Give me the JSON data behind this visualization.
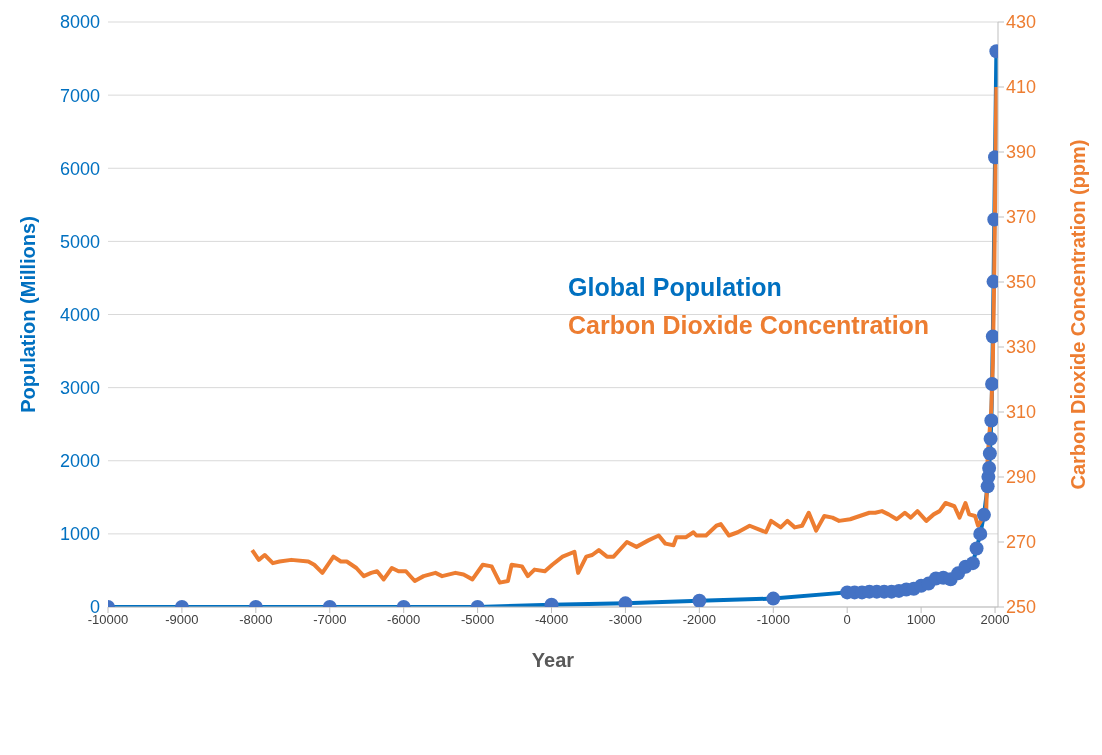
{
  "chart_data": {
    "type": "line",
    "xlabel": "Year",
    "ylabel": "Population  (Millions)",
    "y2label": "Carbon Dioxide Concentration  (ppm)",
    "xlim": [
      -10000,
      2040
    ],
    "xticks": [
      -10000,
      -9000,
      -8000,
      -7000,
      -6000,
      -5000,
      -4000,
      -3000,
      -2000,
      -1000,
      0,
      1000,
      2000
    ],
    "ylim": [
      0,
      8000
    ],
    "yticks": [
      0,
      1000,
      2000,
      3000,
      4000,
      5000,
      6000,
      7000,
      8000
    ],
    "y2lim": [
      250,
      430
    ],
    "y2ticks": [
      250,
      270,
      290,
      310,
      330,
      350,
      370,
      390,
      410,
      430
    ],
    "grid": "y",
    "legend": "top right",
    "line_style": "solid",
    "series": [
      {
        "name": "Global Population",
        "color": "#4472c4",
        "marker": "circle",
        "x": [
          -10000,
          -9000,
          -8000,
          -7000,
          -6000,
          -5000,
          -4000,
          -3000,
          -2000,
          -1000,
          0,
          100,
          200,
          300,
          400,
          500,
          600,
          700,
          800,
          900,
          1000,
          1100,
          1200,
          1300,
          1400,
          1500,
          1600,
          1700,
          1750,
          1800,
          1850,
          1900,
          1910,
          1920,
          1930,
          1940,
          1950,
          1960,
          1970,
          1980,
          1990,
          2000,
          2018
        ],
        "values": [
          0,
          0,
          0,
          0,
          0,
          0,
          30,
          50,
          85,
          115,
          200,
          200,
          200,
          210,
          210,
          210,
          210,
          220,
          240,
          250,
          290,
          320,
          390,
          400,
          380,
          460,
          550,
          600,
          800,
          1000,
          1260,
          1650,
          1780,
          1900,
          2100,
          2300,
          2550,
          3050,
          3700,
          4450,
          5300,
          6150,
          7600
        ]
      },
      {
        "name": "Carbon Dioxide Concentration",
        "color": "#ed7d31",
        "marker": "none",
        "axis": "y2",
        "x": [
          -8050,
          -7960,
          -7880,
          -7770,
          -7680,
          -7520,
          -7290,
          -7210,
          -7100,
          -6950,
          -6850,
          -6770,
          -6640,
          -6540,
          -6440,
          -6360,
          -6270,
          -6160,
          -6070,
          -5970,
          -5850,
          -5730,
          -5570,
          -5480,
          -5300,
          -5190,
          -5070,
          -4930,
          -4810,
          -4700,
          -4590,
          -4540,
          -4400,
          -4320,
          -4230,
          -4090,
          -3990,
          -3850,
          -3690,
          -3640,
          -3530,
          -3450,
          -3360,
          -3250,
          -3160,
          -2980,
          -2850,
          -2690,
          -2550,
          -2460,
          -2350,
          -2310,
          -2180,
          -2080,
          -2040,
          -1910,
          -1770,
          -1710,
          -1600,
          -1480,
          -1320,
          -1100,
          -1030,
          -900,
          -810,
          -710,
          -610,
          -520,
          -420,
          -310,
          -200,
          -110,
          40,
          170,
          300,
          380,
          470,
          560,
          670,
          780,
          860,
          950,
          1070,
          1170,
          1250,
          1330,
          1450,
          1520,
          1600,
          1650,
          1730,
          1770,
          1880,
          1900,
          1950,
          1970,
          1990,
          2018
        ],
        "values": [
          267.5,
          264.5,
          266,
          263.5,
          264,
          264.5,
          264,
          263,
          260.5,
          265.5,
          264,
          264,
          262,
          259.5,
          260.5,
          261,
          258.5,
          262,
          261,
          261,
          258,
          259.5,
          260.5,
          259.5,
          260.5,
          260,
          258.5,
          263,
          262.5,
          257.5,
          258,
          263,
          262.5,
          259.5,
          261.5,
          261,
          263,
          265.5,
          267,
          260.5,
          265.5,
          266,
          267.5,
          265.5,
          265.5,
          270,
          268.5,
          270.5,
          272,
          269.5,
          269,
          271.5,
          271.5,
          273,
          272,
          272,
          275,
          275.5,
          272,
          273,
          275,
          273,
          276.5,
          274.5,
          276.5,
          274.5,
          275,
          279,
          273.5,
          278,
          277.5,
          276.5,
          277,
          278,
          279,
          279,
          279.5,
          278.5,
          277,
          279,
          277.5,
          279.5,
          276.5,
          278.5,
          279.5,
          282,
          281,
          277.5,
          282,
          278.5,
          278,
          275,
          279,
          296,
          311,
          325,
          354,
          410
        ]
      }
    ]
  }
}
